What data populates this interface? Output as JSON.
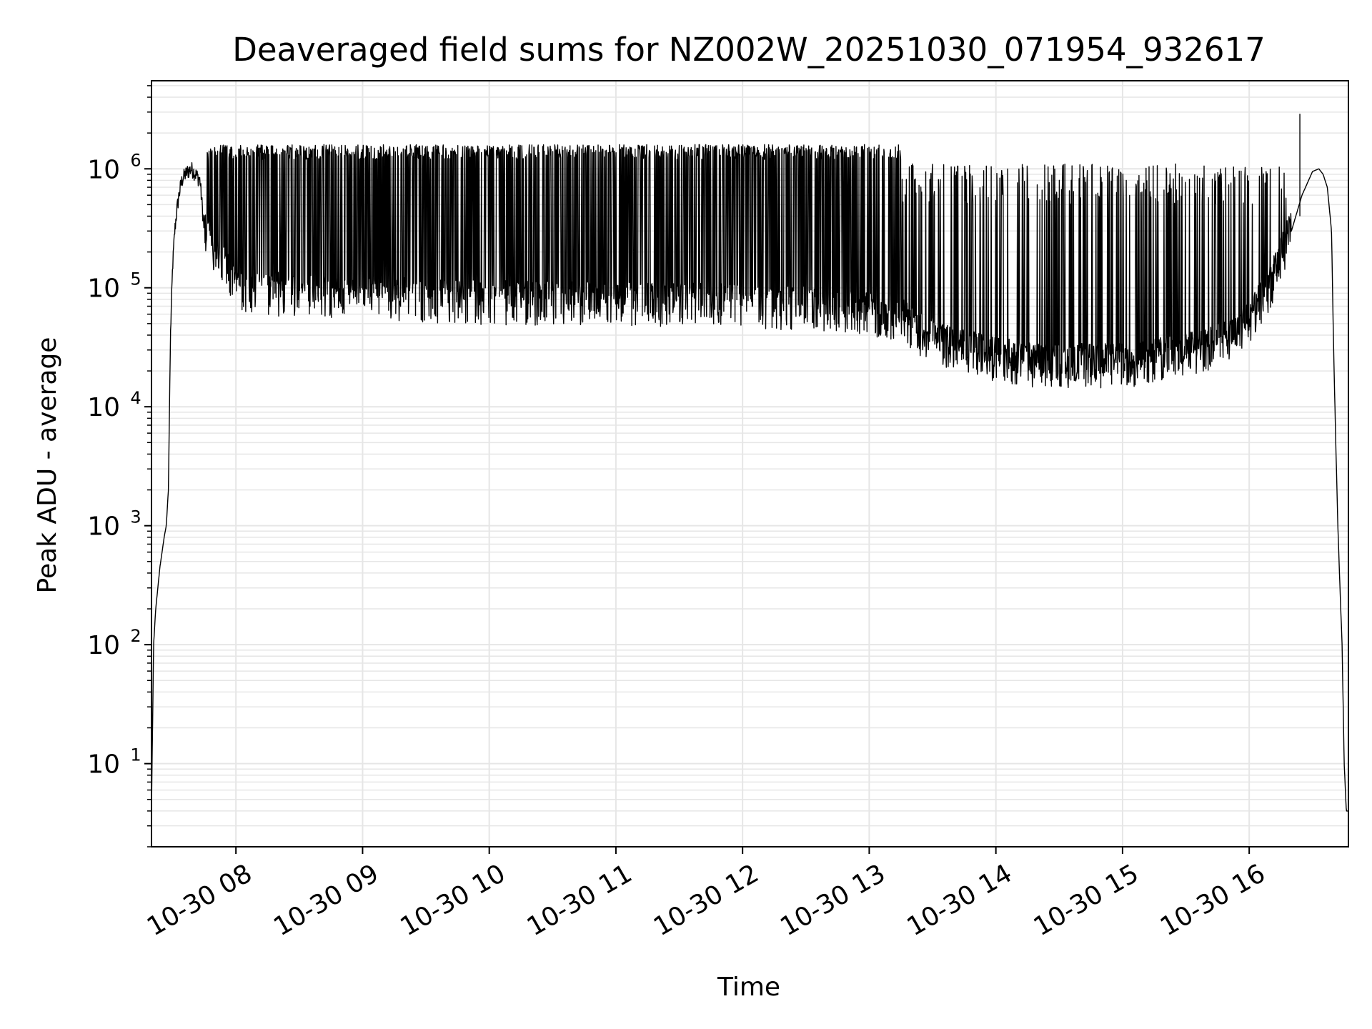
{
  "chart_data": {
    "type": "line",
    "title": "Deaveraged field sums for NZ002W_20251030_071954_932617",
    "xlabel": "Time",
    "ylabel": "Peak ADU - average",
    "yscale": "log",
    "xlim": [
      "2025-10-30 07:20",
      "2025-10-30 16:47"
    ],
    "ylim": [
      2,
      5500000
    ],
    "grid": true,
    "line_color": "#000000",
    "grid_color": "#e6e6e6",
    "x_ticks": [
      {
        "time": "2025-10-30 08:00",
        "label": "10-30 08"
      },
      {
        "time": "2025-10-30 09:00",
        "label": "10-30 09"
      },
      {
        "time": "2025-10-30 10:00",
        "label": "10-30 10"
      },
      {
        "time": "2025-10-30 11:00",
        "label": "10-30 11"
      },
      {
        "time": "2025-10-30 12:00",
        "label": "10-30 12"
      },
      {
        "time": "2025-10-30 13:00",
        "label": "10-30 13"
      },
      {
        "time": "2025-10-30 14:00",
        "label": "10-30 14"
      },
      {
        "time": "2025-10-30 15:00",
        "label": "10-30 15"
      },
      {
        "time": "2025-10-30 16:00",
        "label": "10-30 16"
      }
    ],
    "y_ticks": [
      {
        "value": 10,
        "base": "10",
        "exp": "1"
      },
      {
        "value": 100,
        "base": "10",
        "exp": "2"
      },
      {
        "value": 1000,
        "base": "10",
        "exp": "3"
      },
      {
        "value": 10000,
        "base": "10",
        "exp": "4"
      },
      {
        "value": 100000,
        "base": "10",
        "exp": "5"
      },
      {
        "value": 1000000,
        "base": "10",
        "exp": "6"
      }
    ],
    "series": [
      {
        "x": [
          "2025-10-30 07:20",
          "2025-10-30 07:21",
          "2025-10-30 07:22",
          "2025-10-30 07:23",
          "2025-10-30 07:24",
          "2025-10-30 07:25",
          "2025-10-30 07:26",
          "2025-10-30 07:27",
          "2025-10-30 07:28",
          "2025-10-30 07:29",
          "2025-10-30 07:30",
          "2025-10-30 07:31",
          "2025-10-30 07:32",
          "2025-10-30 07:33",
          "2025-10-30 07:34",
          "2025-10-30 07:35",
          "2025-10-30 07:37",
          "2025-10-30 07:39",
          "2025-10-30 07:41",
          "2025-10-30 07:43",
          "2025-10-30 07:45",
          "2025-10-30 07:47",
          "2025-10-30 07:49",
          "2025-10-30 07:51",
          "2025-10-30 07:53",
          "2025-10-30 07:55",
          "2025-10-30 07:57",
          "2025-10-30 08:00",
          "2025-10-30 08:10",
          "2025-10-30 08:30",
          "2025-10-30 09:00",
          "2025-10-30 09:30",
          "2025-10-30 10:00",
          "2025-10-30 10:30",
          "2025-10-30 11:00",
          "2025-10-30 11:30",
          "2025-10-30 12:00",
          "2025-10-30 12:20",
          "2025-10-30 12:40",
          "2025-10-30 13:00",
          "2025-10-30 13:15",
          "2025-10-30 13:25",
          "2025-10-30 13:40",
          "2025-10-30 14:00",
          "2025-10-30 14:20",
          "2025-10-30 14:40",
          "2025-10-30 15:00",
          "2025-10-30 15:20",
          "2025-10-30 15:40",
          "2025-10-30 15:50",
          "2025-10-30 16:00",
          "2025-10-30 16:10",
          "2025-10-30 16:20",
          "2025-10-30 16:25",
          "2025-10-30 16:30",
          "2025-10-30 16:33",
          "2025-10-30 16:35",
          "2025-10-30 16:37",
          "2025-10-30 16:39",
          "2025-10-30 16:40",
          "2025-10-30 16:41",
          "2025-10-30 16:42",
          "2025-10-30 16:43",
          "2025-10-30 16:44",
          "2025-10-30 16:45",
          "2025-10-30 16:46",
          "2025-10-30 16:47"
        ],
        "y": [
          4,
          100,
          200,
          300,
          450,
          600,
          800,
          1000,
          2000,
          40000,
          150000,
          300000,
          450000,
          600000,
          750000,
          850000,
          950000,
          1000000,
          900000,
          800000,
          300000,
          250000,
          220000,
          200000,
          180000,
          150000,
          130000,
          100000,
          90000,
          85000,
          80000,
          78000,
          75000,
          74000,
          73000,
          72000,
          70000,
          68000,
          65000,
          60000,
          55000,
          40000,
          30000,
          25000,
          22000,
          22000,
          22000,
          25000,
          30000,
          35000,
          50000,
          100000,
          300000,
          600000,
          950000,
          1000000,
          900000,
          700000,
          300000,
          30000,
          5000,
          1000,
          300,
          100,
          10,
          4,
          4
        ]
      }
    ]
  }
}
